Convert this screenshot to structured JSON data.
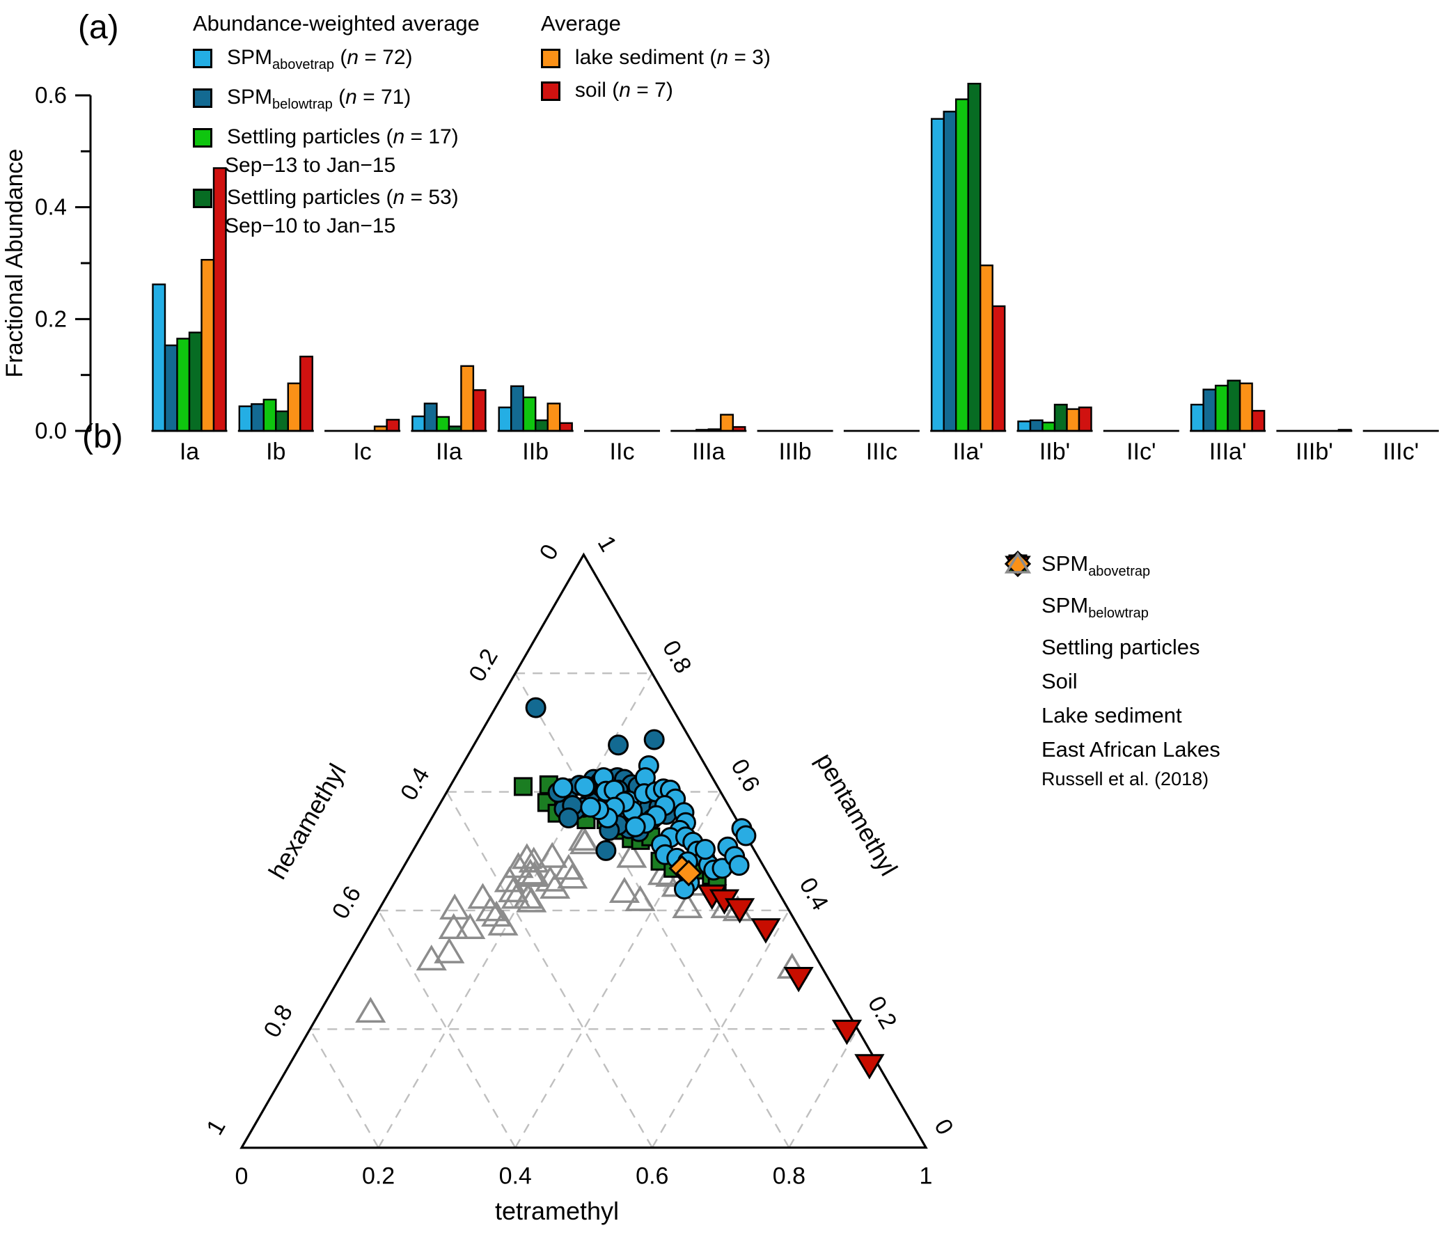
{
  "panels": {
    "a": {
      "label": "(a)",
      "legend_groups": [
        {
          "title": "Abundance-weighted average",
          "items": [
            {
              "text": "SPM",
              "sub": "abovetrap",
              "count": "72",
              "color": "#24AEE4"
            },
            {
              "text": "SPM",
              "sub": "belowtrap",
              "count": "71",
              "color": "#136A92"
            },
            {
              "text": "Settling particles",
              "count": "17",
              "line2": "Sep−13 to Jan−15",
              "color": "#0FC50F"
            },
            {
              "text": "Settling particles",
              "count": "53",
              "line2": "Sep−10 to Jan−15",
              "color": "#076C23"
            }
          ]
        },
        {
          "title": "Average",
          "items": [
            {
              "text": "lake sediment",
              "count": "3",
              "color": "#FB9117"
            },
            {
              "text": "soil",
              "count": "7",
              "color": "#D01210"
            }
          ]
        }
      ],
      "chart_data": {
        "type": "bar",
        "title": "",
        "xlabel": "",
        "ylabel": "Fractional Abundance",
        "ylim": [
          0,
          0.6
        ],
        "y_tick_labels": [
          "0.0",
          "0.2",
          "0.4",
          "0.6"
        ],
        "y_ticks": [
          0,
          0.2,
          0.4,
          0.6
        ],
        "y_minor_ticks": [
          0.1,
          0.3,
          0.5
        ],
        "categories": [
          "Ia",
          "Ib",
          "Ic",
          "IIa",
          "IIb",
          "IIc",
          "IIIa",
          "IIIb",
          "IIIc",
          "IIa'",
          "IIb'",
          "IIc'",
          "IIIa'",
          "IIIb'",
          "IIIc'"
        ],
        "series": [
          {
            "name": "SPM abovetrap (n = 72)",
            "color": "#24AEE4",
            "values": [
              0.262,
              0.044,
              0.001,
              0.026,
              0.042,
              0.001,
              0.001,
              0.0,
              0.0,
              0.558,
              0.017,
              0.0,
              0.047,
              0.0,
              0.0
            ]
          },
          {
            "name": "SPM belowtrap (n = 71)",
            "color": "#136A92",
            "values": [
              0.153,
              0.048,
              0.001,
              0.049,
              0.08,
              0.001,
              0.001,
              0.0,
              0.0,
              0.571,
              0.019,
              0.0,
              0.074,
              0.0,
              0.0
            ]
          },
          {
            "name": "Settling particles (n = 17) Sep-13 to Jan-15",
            "color": "#0FC50F",
            "values": [
              0.165,
              0.056,
              0.001,
              0.025,
              0.06,
              0.001,
              0.002,
              0.0,
              0.0,
              0.593,
              0.015,
              0.0,
              0.081,
              0.0,
              0.0
            ]
          },
          {
            "name": "Settling particles (n = 53) Sep-10 to Jan-15",
            "color": "#076C23",
            "values": [
              0.176,
              0.035,
              0.001,
              0.008,
              0.019,
              0.0,
              0.003,
              0.0,
              0.0,
              0.621,
              0.047,
              0.0,
              0.09,
              0.001,
              0.0
            ]
          },
          {
            "name": "lake sediment (n = 3)",
            "color": "#FB9117",
            "values": [
              0.306,
              0.085,
              0.008,
              0.116,
              0.049,
              0.001,
              0.029,
              0.001,
              0.0,
              0.296,
              0.039,
              0.0,
              0.085,
              0.001,
              0.0
            ]
          },
          {
            "name": "soil (n = 7)",
            "color": "#D01210",
            "values": [
              0.47,
              0.133,
              0.02,
              0.073,
              0.014,
              0.001,
              0.007,
              0.001,
              0.0,
              0.223,
              0.042,
              0.0,
              0.036,
              0.002,
              0.0
            ]
          }
        ]
      }
    },
    "b": {
      "label": "(b)",
      "legend_items": [
        {
          "text": "SPM",
          "sub": "abovetrap",
          "marker": "circle",
          "color": "#29ACE3"
        },
        {
          "text": "SPM",
          "sub": "belowtrap",
          "marker": "circle",
          "color": "#136A92"
        },
        {
          "text": "Settling particles",
          "marker": "square",
          "color": "#1FCC11"
        },
        {
          "text": "Soil",
          "marker": "triangle-down",
          "color": "#D01210"
        },
        {
          "text": "Lake sediment",
          "marker": "diamond",
          "color": "#FB9117"
        },
        {
          "text": "East African Lakes",
          "line2": "Russell et al. (2018)",
          "marker": "triangle-up-open",
          "color": "#8C8C8C"
        }
      ],
      "chart_data": {
        "type": "scatter",
        "subtype": "ternary",
        "axes": {
          "bottom": "tetramethyl",
          "left": "hexamethyl",
          "right": "pentamethyl"
        },
        "bottom_tick_labels": [
          "0",
          "0.2",
          "0.4",
          "0.6",
          "0.8",
          "1"
        ],
        "bottom_tick_values": [
          0,
          0.2,
          0.4,
          0.6,
          0.8,
          1
        ],
        "left_edge_tick_labels": [
          "0.2",
          "0.4",
          "0.6",
          "0.8"
        ],
        "left_edge_tick_values": [
          0.2,
          0.4,
          0.6,
          0.8
        ],
        "right_edge_tick_labels": [
          "0.8",
          "0.6",
          "0.4",
          "0.2"
        ],
        "right_edge_tick_values": [
          0.8,
          0.6,
          0.4,
          0.2
        ],
        "corner_labels": {
          "left_top": "0",
          "right_top": "1",
          "left_bottom": "1",
          "right_bottom": "0"
        },
        "grid_steps": [
          0.2,
          0.4,
          0.6,
          0.8
        ],
        "series": [
          {
            "name": "East African Lakes Russell et al. (2018)",
            "marker": "triangle-up-open",
            "color": "#8C8C8C",
            "points_tetra_penta": [
              [
                0.169,
                0.471
              ],
              [
                0.174,
                0.486
              ],
              [
                0.187,
                0.48
              ],
              [
                0.192,
                0.46
              ],
              [
                0.2,
                0.456
              ],
              [
                0.21,
                0.488
              ],
              [
                0.244,
                0.468
              ],
              [
                0.257,
                0.453
              ],
              [
                0.227,
                0.448
              ],
              [
                0.24,
                0.436
              ],
              [
                0.168,
                0.447
              ],
              [
                0.182,
                0.43
              ],
              [
                0.192,
                0.419
              ],
              [
                0.209,
                0.419
              ],
              [
                0.217,
                0.413
              ],
              [
                0.143,
                0.419
              ],
              [
                0.165,
                0.398
              ],
              [
                0.178,
                0.389
              ],
              [
                0.195,
                0.374
              ],
              [
                0.111,
                0.401
              ],
              [
                0.126,
                0.368
              ],
              [
                0.15,
                0.368
              ],
              [
                0.12,
                0.315
              ],
              [
                0.14,
                0.327
              ],
              [
                0.075,
                0.227
              ],
              [
                0.241,
                0.517
              ],
              [
                0.246,
                0.511
              ],
              [
                0.326,
                0.488
              ],
              [
                0.386,
                0.459
              ],
              [
                0.399,
                0.456
              ],
              [
                0.416,
                0.439
              ],
              [
                0.45,
                0.403
              ],
              [
                0.454,
                0.441
              ],
              [
                0.506,
                0.403
              ],
              [
                0.526,
                0.398
              ],
              [
                0.654,
                0.301
              ],
              [
                0.345,
                0.429
              ],
              [
                0.375,
                0.415
              ]
            ]
          },
          {
            "name": "Settling particles",
            "marker": "square",
            "color": "#1B7D22",
            "points_tetra_penta": [
              [
                0.107,
                0.609
              ],
              [
                0.143,
                0.612
              ],
              [
                0.155,
                0.582
              ],
              [
                0.179,
                0.564
              ],
              [
                0.227,
                0.553
              ],
              [
                0.256,
                0.553
              ],
              [
                0.287,
                0.535
              ],
              [
                0.309,
                0.521
              ],
              [
                0.324,
                0.518
              ],
              [
                0.336,
                0.524
              ],
              [
                0.37,
                0.483
              ],
              [
                0.395,
                0.471
              ],
              [
                0.44,
                0.468
              ],
              [
                0.457,
                0.459
              ],
              [
                0.47,
                0.45
              ]
            ]
          },
          {
            "name": "SPM belowtrap",
            "marker": "circle",
            "color": "#136A92",
            "points_tetra_penta": [
              [
                0.059,
                0.742
              ],
              [
                0.211,
                0.679
              ],
              [
                0.259,
                0.688
              ],
              [
                0.282,
                0.501
              ],
              [
                0.204,
                0.621
              ],
              [
                0.216,
                0.617
              ],
              [
                0.227,
                0.621
              ],
              [
                0.237,
                0.624
              ],
              [
                0.249,
                0.621
              ],
              [
                0.264,
                0.612
              ],
              [
                0.275,
                0.609
              ],
              [
                0.249,
                0.603
              ],
              [
                0.243,
                0.585
              ],
              [
                0.229,
                0.585
              ],
              [
                0.218,
                0.583
              ],
              [
                0.213,
                0.574
              ],
              [
                0.203,
                0.57
              ],
              [
                0.187,
                0.583
              ],
              [
                0.186,
                0.571
              ],
              [
                0.278,
                0.57
              ],
              [
                0.297,
                0.558
              ],
              [
                0.309,
                0.574
              ],
              [
                0.323,
                0.574
              ],
              [
                0.34,
                0.562
              ],
              [
                0.323,
                0.554
              ],
              [
                0.314,
                0.533
              ],
              [
                0.297,
                0.538
              ],
              [
                0.278,
                0.544
              ],
              [
                0.27,
                0.535
              ],
              [
                0.163,
                0.599
              ],
              [
                0.177,
                0.605
              ],
              [
                0.188,
                0.611
              ],
              [
                0.195,
                0.577
              ],
              [
                0.2,
                0.556
              ]
            ]
          },
          {
            "name": "SPM abovetrap",
            "marker": "circle",
            "color": "#29ACE3",
            "points_tetra_penta": [
              [
                0.166,
                0.607
              ],
              [
                0.2,
                0.609
              ],
              [
                0.217,
                0.624
              ],
              [
                0.273,
                0.644
              ],
              [
                0.278,
                0.624
              ],
              [
                0.232,
                0.601
              ],
              [
                0.243,
                0.603
              ],
              [
                0.273,
                0.585
              ],
              [
                0.287,
                0.568
              ],
              [
                0.29,
                0.597
              ],
              [
                0.305,
                0.6
              ],
              [
                0.314,
                0.605
              ],
              [
                0.325,
                0.603
              ],
              [
                0.34,
                0.588
              ],
              [
                0.33,
                0.577
              ],
              [
                0.326,
                0.56
              ],
              [
                0.317,
                0.547
              ],
              [
                0.305,
                0.541
              ],
              [
                0.268,
                0.583
              ],
              [
                0.258,
                0.574
              ],
              [
                0.257,
                0.556
              ],
              [
                0.237,
                0.57
              ],
              [
                0.223,
                0.574
              ],
              [
                0.197,
                0.609
              ],
              [
                0.364,
                0.565
              ],
              [
                0.375,
                0.548
              ],
              [
                0.373,
                0.535
              ],
              [
                0.365,
                0.523
              ],
              [
                0.358,
                0.511
              ],
              [
                0.387,
                0.524
              ],
              [
                0.402,
                0.515
              ],
              [
                0.416,
                0.5
              ],
              [
                0.433,
                0.488
              ],
              [
                0.444,
                0.477
              ],
              [
                0.456,
                0.468
              ],
              [
                0.467,
                0.471
              ],
              [
                0.426,
                0.503
              ],
              [
                0.372,
                0.494
              ],
              [
                0.392,
                0.488
              ],
              [
                0.411,
                0.482
              ],
              [
                0.462,
                0.538
              ],
              [
                0.474,
                0.526
              ],
              [
                0.457,
                0.507
              ],
              [
                0.475,
                0.491
              ],
              [
                0.489,
                0.476
              ],
              [
                0.431,
                0.447
              ],
              [
                0.429,
                0.436
              ]
            ]
          },
          {
            "name": "Lake sediment",
            "marker": "diamond",
            "color": "#FB9117",
            "points_tetra_penta": [
              [
                0.408,
                0.471
              ],
              [
                0.422,
                0.463
              ]
            ]
          },
          {
            "name": "Soil",
            "marker": "triangle-down",
            "color": "#C80D00",
            "points_tetra_penta": [
              [
                0.473,
                0.429
              ],
              [
                0.495,
                0.421
              ],
              [
                0.525,
                0.406
              ],
              [
                0.58,
                0.372
              ],
              [
                0.669,
                0.29
              ],
              [
                0.784,
                0.201
              ],
              [
                0.846,
                0.143
              ]
            ]
          }
        ],
        "xlabel": "tetramethyl",
        "grid": true,
        "legend_position": "right"
      }
    }
  }
}
